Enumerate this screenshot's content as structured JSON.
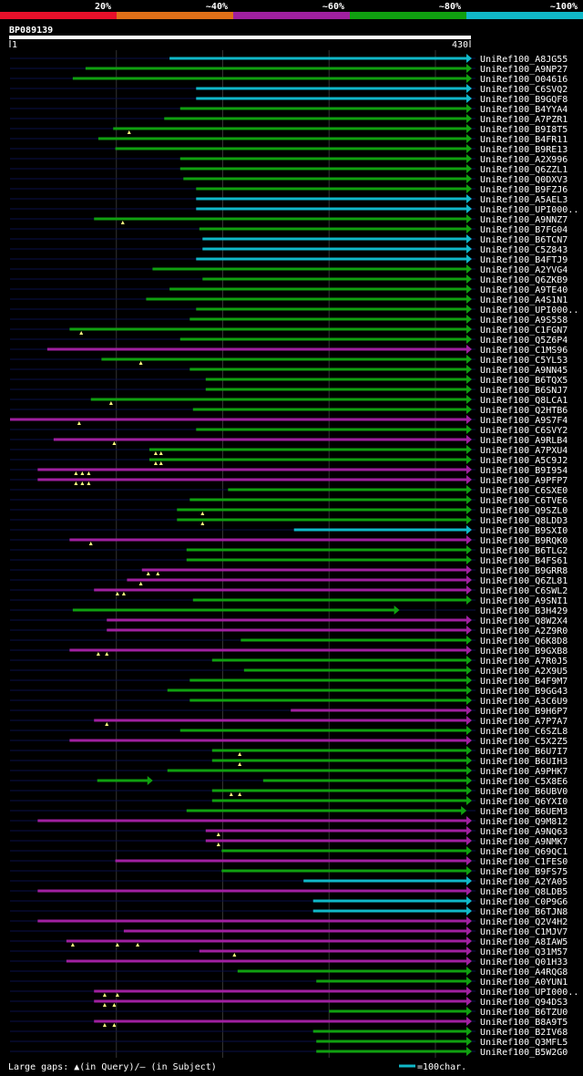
{
  "chart_data": {
    "type": "alignment-coverage",
    "title": "BP089139",
    "query_length": 430,
    "axis": {
      "start_label": "1",
      "end_label": "430"
    },
    "identity_legend": [
      {
        "label": "20%",
        "color": "#e8102a"
      },
      {
        "label": "~40%",
        "color": "#e07018"
      },
      {
        "label": "~60%",
        "color": "#a020a0"
      },
      {
        "label": "~80%",
        "color": "#10a010"
      },
      {
        "label": "~100%",
        "color": "#10b8c8"
      }
    ],
    "footer": {
      "gaps_label": "Large gaps: ▲(in Query)/— (in Subject)",
      "scale_label": "=100char."
    },
    "rows": [
      {
        "name": "UniRef100_A8JG55",
        "start": 150,
        "end": 430,
        "color": "cyan"
      },
      {
        "name": "UniRef100_A9NP27",
        "start": 71,
        "end": 430,
        "color": "green"
      },
      {
        "name": "UniRef100_O04616",
        "start": 59,
        "end": 430,
        "color": "green"
      },
      {
        "name": "UniRef100_C6SVQ2",
        "start": 175,
        "end": 430,
        "color": "cyan"
      },
      {
        "name": "UniRef100_B9GQF8",
        "start": 175,
        "end": 430,
        "color": "cyan"
      },
      {
        "name": "UniRef100_B4YYA4",
        "start": 160,
        "end": 430,
        "color": "green"
      },
      {
        "name": "UniRef100_A7PZR1",
        "start": 145,
        "end": 430,
        "color": "green"
      },
      {
        "name": "UniRef100_B9I8T5",
        "start": 97,
        "end": 430,
        "color": "green",
        "gaps": [
          112
        ]
      },
      {
        "name": "UniRef100_B4FR11",
        "start": 83,
        "end": 430,
        "color": "green"
      },
      {
        "name": "UniRef100_B9RE13",
        "start": 99,
        "end": 430,
        "color": "green"
      },
      {
        "name": "UniRef100_A2X996",
        "start": 160,
        "end": 430,
        "color": "green"
      },
      {
        "name": "UniRef100_Q6ZZL1",
        "start": 160,
        "end": 430,
        "color": "green"
      },
      {
        "name": "UniRef100_Q0DXV3",
        "start": 163,
        "end": 430,
        "color": "green"
      },
      {
        "name": "UniRef100_B9FZJ6",
        "start": 175,
        "end": 430,
        "color": "green"
      },
      {
        "name": "UniRef100_A5AEL3",
        "start": 175,
        "end": 430,
        "color": "cyan"
      },
      {
        "name": "UniRef100_UPI000..",
        "start": 175,
        "end": 430,
        "color": "cyan"
      },
      {
        "name": "UniRef100_A9NNZ7",
        "start": 79,
        "end": 430,
        "color": "green",
        "gaps": [
          106
        ]
      },
      {
        "name": "UniRef100_B7FG04",
        "start": 178,
        "end": 430,
        "color": "green"
      },
      {
        "name": "UniRef100_B6TCN7",
        "start": 181,
        "end": 430,
        "color": "cyan"
      },
      {
        "name": "UniRef100_C5Z843",
        "start": 181,
        "end": 430,
        "color": "cyan"
      },
      {
        "name": "UniRef100_B4FTJ9",
        "start": 175,
        "end": 430,
        "color": "cyan"
      },
      {
        "name": "UniRef100_A2YVG4",
        "start": 134,
        "end": 430,
        "color": "green"
      },
      {
        "name": "UniRef100_Q6ZKB9",
        "start": 181,
        "end": 430,
        "color": "green"
      },
      {
        "name": "UniRef100_A9TE40",
        "start": 150,
        "end": 430,
        "color": "green"
      },
      {
        "name": "UniRef100_A4S1N1",
        "start": 128,
        "end": 430,
        "color": "green"
      },
      {
        "name": "UniRef100_UPI000..",
        "start": 175,
        "end": 430,
        "color": "green"
      },
      {
        "name": "UniRef100_A9S558",
        "start": 169,
        "end": 430,
        "color": "green"
      },
      {
        "name": "UniRef100_C1FGN7",
        "start": 56,
        "end": 430,
        "color": "green",
        "gaps": [
          67
        ]
      },
      {
        "name": "UniRef100_Q5Z6P4",
        "start": 160,
        "end": 430,
        "color": "green"
      },
      {
        "name": "UniRef100_C1MS96",
        "start": 35,
        "end": 430,
        "color": "purple"
      },
      {
        "name": "UniRef100_C5YL53",
        "start": 86,
        "end": 430,
        "color": "green",
        "gaps": [
          123
        ]
      },
      {
        "name": "UniRef100_A9NN45",
        "start": 169,
        "end": 430,
        "color": "green"
      },
      {
        "name": "UniRef100_B6TQX5",
        "start": 184,
        "end": 430,
        "color": "green"
      },
      {
        "name": "UniRef100_B6SNJ7",
        "start": 184,
        "end": 430,
        "color": "green"
      },
      {
        "name": "UniRef100_Q8LCA1",
        "start": 76,
        "end": 430,
        "color": "green",
        "gaps": [
          95
        ]
      },
      {
        "name": "UniRef100_Q2HTB6",
        "start": 172,
        "end": 430,
        "color": "green"
      },
      {
        "name": "UniRef100_A9S7F4",
        "start": 0,
        "end": 430,
        "color": "purple",
        "gaps": [
          65
        ]
      },
      {
        "name": "UniRef100_C6SVY2",
        "start": 175,
        "end": 430,
        "color": "green"
      },
      {
        "name": "UniRef100_A9RLB4",
        "start": 41,
        "end": 430,
        "color": "purple",
        "gaps": [
          98
        ]
      },
      {
        "name": "UniRef100_A7PXU4",
        "start": 131,
        "end": 430,
        "color": "green",
        "gaps": [
          137,
          142
        ]
      },
      {
        "name": "UniRef100_A5C9J2",
        "start": 131,
        "end": 430,
        "color": "green",
        "gaps": [
          137,
          142
        ]
      },
      {
        "name": "UniRef100_B9I954",
        "start": 26,
        "end": 430,
        "color": "purple",
        "gaps": [
          62,
          68,
          74
        ]
      },
      {
        "name": "UniRef100_A9PFP7",
        "start": 26,
        "end": 430,
        "color": "purple",
        "gaps": [
          62,
          68,
          74
        ]
      },
      {
        "name": "UniRef100_C6SXE0",
        "start": 205,
        "end": 430,
        "color": "green"
      },
      {
        "name": "UniRef100_C6TVE6",
        "start": 169,
        "end": 430,
        "color": "green"
      },
      {
        "name": "UniRef100_Q9SZL0",
        "start": 157,
        "end": 430,
        "color": "green",
        "gaps": [
          181
        ]
      },
      {
        "name": "UniRef100_Q8LDD3",
        "start": 157,
        "end": 430,
        "color": "green",
        "gaps": [
          181
        ]
      },
      {
        "name": "UniRef100_B9SXI0",
        "start": 267,
        "end": 430,
        "color": "cyan"
      },
      {
        "name": "UniRef100_B9RQK0",
        "start": 56,
        "end": 430,
        "color": "purple",
        "gaps": [
          76
        ]
      },
      {
        "name": "UniRef100_B6TLG2",
        "start": 166,
        "end": 430,
        "color": "green"
      },
      {
        "name": "UniRef100_B4FS61",
        "start": 166,
        "end": 430,
        "color": "green"
      },
      {
        "name": "UniRef100_B9GRR8",
        "start": 124,
        "end": 430,
        "color": "purple",
        "gaps": [
          130,
          139
        ]
      },
      {
        "name": "UniRef100_Q6ZL81",
        "start": 110,
        "end": 430,
        "color": "purple",
        "gaps": [
          123
        ]
      },
      {
        "name": "UniRef100_C6SWL2",
        "start": 79,
        "end": 430,
        "color": "purple",
        "gaps": [
          101,
          107
        ]
      },
      {
        "name": "UniRef100_A9SNI1",
        "start": 172,
        "end": 430,
        "color": "green"
      },
      {
        "name": "UniRef100_B3H429",
        "start": 59,
        "end": 362,
        "color": "green"
      },
      {
        "name": "UniRef100_Q8W2X4",
        "start": 91,
        "end": 430,
        "color": "purple"
      },
      {
        "name": "UniRef100_A2Z9R0",
        "start": 91,
        "end": 430,
        "color": "purple"
      },
      {
        "name": "UniRef100_Q6K8D8",
        "start": 217,
        "end": 430,
        "color": "green"
      },
      {
        "name": "UniRef100_B9GXB8",
        "start": 56,
        "end": 430,
        "color": "purple",
        "gaps": [
          83,
          91
        ]
      },
      {
        "name": "UniRef100_A7R0J5",
        "start": 190,
        "end": 430,
        "color": "green"
      },
      {
        "name": "UniRef100_A2X9U5",
        "start": 220,
        "end": 430,
        "color": "green"
      },
      {
        "name": "UniRef100_B4F9M7",
        "start": 169,
        "end": 430,
        "color": "green"
      },
      {
        "name": "UniRef100_B9GG43",
        "start": 148,
        "end": 430,
        "color": "green"
      },
      {
        "name": "UniRef100_A3C6U9",
        "start": 169,
        "end": 430,
        "color": "green"
      },
      {
        "name": "UniRef100_B9H6P7",
        "start": 264,
        "end": 430,
        "color": "purple"
      },
      {
        "name": "UniRef100_A7P7A7",
        "start": 79,
        "end": 430,
        "color": "purple",
        "gaps": [
          91
        ]
      },
      {
        "name": "UniRef100_C6SZL8",
        "start": 160,
        "end": 430,
        "color": "green"
      },
      {
        "name": "UniRef100_C5X2Z5",
        "start": 56,
        "end": 430,
        "color": "purple"
      },
      {
        "name": "UniRef100_B6U7I7",
        "start": 190,
        "end": 430,
        "color": "green",
        "gaps": [
          216
        ]
      },
      {
        "name": "UniRef100_B6UIH3",
        "start": 190,
        "end": 430,
        "color": "green",
        "gaps": [
          216
        ]
      },
      {
        "name": "UniRef100_A9PHK7",
        "start": 148,
        "end": 430,
        "color": "green"
      },
      {
        "name": "UniRef100_C5X8E6",
        "start": 82,
        "end": 130,
        "color": "green",
        "start2": 238,
        "end2": 430
      },
      {
        "name": "UniRef100_B6UBV0",
        "start": 190,
        "end": 430,
        "color": "green",
        "gaps": [
          208,
          216
        ]
      },
      {
        "name": "UniRef100_Q6YXI0",
        "start": 190,
        "end": 430,
        "color": "green"
      },
      {
        "name": "UniRef100_B6UEM3",
        "start": 166,
        "end": 425,
        "color": "green"
      },
      {
        "name": "UniRef100_Q9M812",
        "start": 26,
        "end": 430,
        "color": "purple"
      },
      {
        "name": "UniRef100_A9NQ63",
        "start": 184,
        "end": 430,
        "color": "purple",
        "gaps": [
          196
        ]
      },
      {
        "name": "UniRef100_A9NMK7",
        "start": 184,
        "end": 430,
        "color": "purple",
        "gaps": [
          196
        ]
      },
      {
        "name": "UniRef100_Q69QC1",
        "start": 199,
        "end": 430,
        "color": "green"
      },
      {
        "name": "UniRef100_C1FES0",
        "start": 99,
        "end": 430,
        "color": "purple"
      },
      {
        "name": "UniRef100_B9FS75",
        "start": 199,
        "end": 430,
        "color": "green"
      },
      {
        "name": "UniRef100_A2YA05",
        "start": 276,
        "end": 430,
        "color": "cyan"
      },
      {
        "name": "UniRef100_Q8LDB5",
        "start": 26,
        "end": 430,
        "color": "purple"
      },
      {
        "name": "UniRef100_C0P9G6",
        "start": 285,
        "end": 430,
        "color": "cyan"
      },
      {
        "name": "UniRef100_B6TJN8",
        "start": 285,
        "end": 430,
        "color": "cyan"
      },
      {
        "name": "UniRef100_Q2V4H2",
        "start": 26,
        "end": 430,
        "color": "purple"
      },
      {
        "name": "UniRef100_C1MJV7",
        "start": 107,
        "end": 430,
        "color": "purple"
      },
      {
        "name": "UniRef100_A8IAW5",
        "start": 53,
        "end": 430,
        "color": "purple",
        "gaps": [
          59,
          101,
          120
        ]
      },
      {
        "name": "UniRef100_Q31M57",
        "start": 178,
        "end": 430,
        "color": "purple",
        "gaps": [
          211
        ]
      },
      {
        "name": "UniRef100_Q01H33",
        "start": 53,
        "end": 430,
        "color": "purple"
      },
      {
        "name": "UniRef100_A4RQG8",
        "start": 214,
        "end": 430,
        "color": "green"
      },
      {
        "name": "UniRef100_A0YUN1",
        "start": 288,
        "end": 430,
        "color": "green"
      },
      {
        "name": "UniRef100_UPI000..",
        "start": 79,
        "end": 430,
        "color": "purple",
        "gaps": [
          89,
          101
        ]
      },
      {
        "name": "UniRef100_Q94DS3",
        "start": 79,
        "end": 430,
        "color": "purple",
        "gaps": [
          89,
          98
        ]
      },
      {
        "name": "UniRef100_B6TZU0",
        "start": 300,
        "end": 430,
        "color": "green"
      },
      {
        "name": "UniRef100_B8A9T5",
        "start": 79,
        "end": 430,
        "color": "purple",
        "gaps": [
          89,
          98
        ]
      },
      {
        "name": "UniRef100_B2IV68",
        "start": 285,
        "end": 430,
        "color": "green"
      },
      {
        "name": "UniRef100_Q3MFL5",
        "start": 288,
        "end": 430,
        "color": "green"
      },
      {
        "name": "UniRef100_B5W2G0",
        "start": 288,
        "end": 430,
        "color": "green"
      }
    ]
  }
}
